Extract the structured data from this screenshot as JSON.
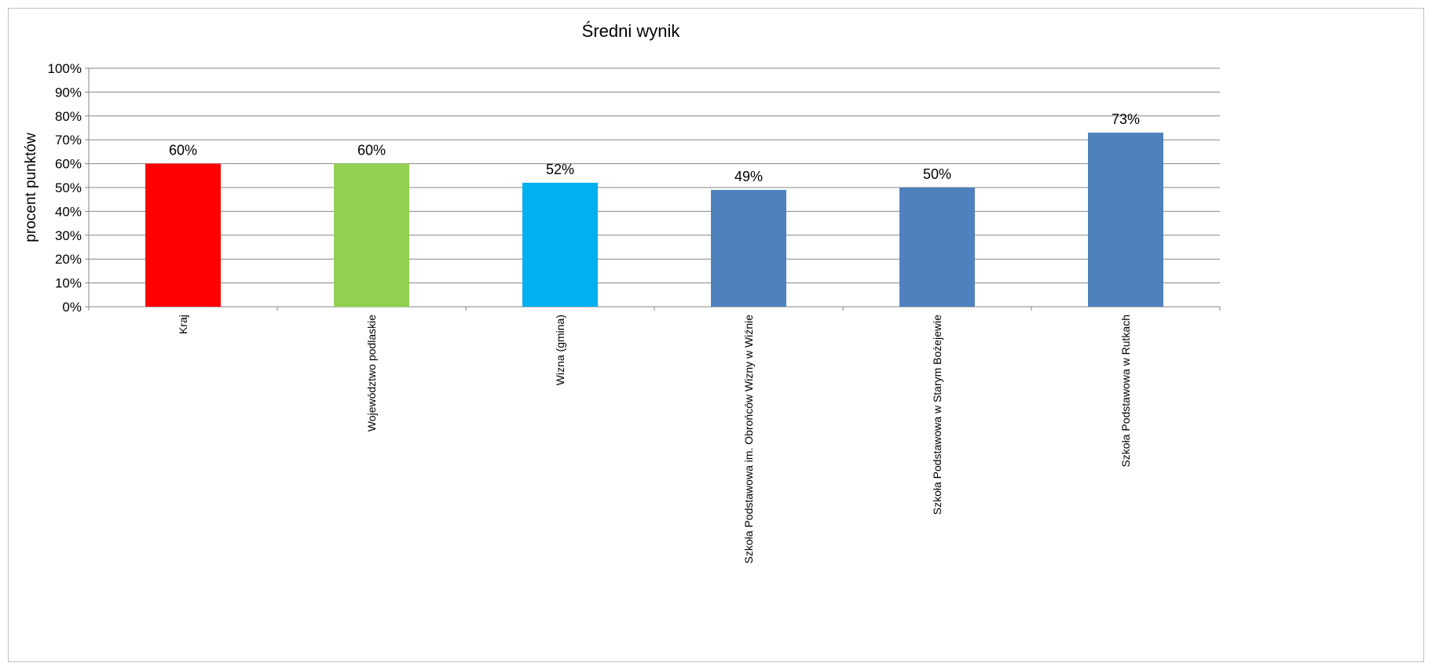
{
  "chart_data": {
    "type": "bar",
    "title": "Średni wynik",
    "ylabel": "procent punktów",
    "xlabel": "",
    "ylim": [
      0,
      100
    ],
    "yticks": [
      "0%",
      "10%",
      "20%",
      "30%",
      "40%",
      "50%",
      "60%",
      "70%",
      "80%",
      "90%",
      "100%"
    ],
    "grid": true,
    "categories": [
      "Kraj",
      "Województwo podlaskie",
      "Wizna (gmina)",
      "Szkoła Podstawowa im. Obrońców Wizny w Wiźnie",
      "Szkoła Podstawowa w Starym Bożejewie",
      "Szkoła Podstawowa w Rutkach"
    ],
    "values": [
      60,
      60,
      52,
      49,
      50,
      73
    ],
    "data_labels": [
      "60%",
      "60%",
      "52%",
      "49%",
      "50%",
      "73%"
    ],
    "colors": [
      "#ff0000",
      "#92d050",
      "#00b0f0",
      "#4f81bd",
      "#4f81bd",
      "#4f81bd"
    ],
    "gridline_color": "#868686"
  }
}
